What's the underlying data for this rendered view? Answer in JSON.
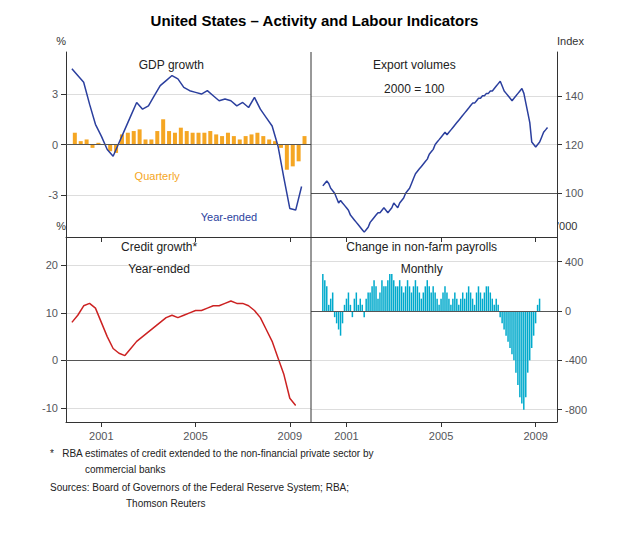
{
  "title": "United States – Activity and Labour Indicators",
  "annotations": [
    "*   RBA estimates of credit extended to the non-financial private sector by",
    "commercial banks",
    "Sources: Board of Governors of the Federal Reserve System; RBA;",
    "Thomson Reuters"
  ],
  "chart_data": [
    {
      "type": "bar",
      "title": "GDP growth",
      "ylabel": "%",
      "xlim": [
        1999.5,
        2009.9
      ],
      "xticks": [
        2001,
        2005,
        2009
      ],
      "ylim": [
        -5.5,
        5.5
      ],
      "yticks": [
        -3,
        0,
        3
      ],
      "grid": true,
      "tick_labels": "y",
      "hline": 0,
      "series": [
        {
          "name": "Quarterly",
          "type": "bar",
          "color": "#f5a623",
          "x": [
            1999.875,
            2000.125,
            2000.375,
            2000.625,
            2000.875,
            2001.125,
            2001.375,
            2001.625,
            2001.875,
            2002.125,
            2002.375,
            2002.625,
            2002.875,
            2003.125,
            2003.375,
            2003.625,
            2003.875,
            2004.125,
            2004.375,
            2004.625,
            2004.875,
            2005.125,
            2005.375,
            2005.625,
            2005.875,
            2006.125,
            2006.375,
            2006.625,
            2006.875,
            2007.125,
            2007.375,
            2007.625,
            2007.875,
            2008.125,
            2008.375,
            2008.625,
            2008.875,
            2009.125,
            2009.375,
            2009.625
          ],
          "values": [
            0.7,
            0.2,
            0.3,
            -0.2,
            0.1,
            0.0,
            -0.4,
            -0.5,
            0.6,
            0.7,
            0.8,
            0.9,
            0.3,
            0.3,
            0.8,
            1.5,
            0.8,
            0.7,
            1.0,
            0.8,
            0.7,
            0.7,
            0.7,
            0.8,
            0.6,
            0.5,
            0.7,
            0.5,
            0.3,
            0.5,
            0.6,
            0.7,
            0.5,
            0.3,
            0.2,
            -0.2,
            -1.5,
            -1.3,
            -1.0,
            0.5
          ]
        },
        {
          "name": "Year-ended",
          "type": "line",
          "color": "#2b3f9e",
          "x": [
            1999.75,
            2000.0,
            2000.25,
            2000.5,
            2000.75,
            2001.0,
            2001.25,
            2001.5,
            2001.75,
            2002.0,
            2002.25,
            2002.5,
            2002.75,
            2003.0,
            2003.25,
            2003.5,
            2003.75,
            2004.0,
            2004.25,
            2004.5,
            2004.75,
            2005.0,
            2005.25,
            2005.5,
            2005.75,
            2006.0,
            2006.25,
            2006.5,
            2006.75,
            2007.0,
            2007.25,
            2007.5,
            2007.75,
            2008.0,
            2008.25,
            2008.5,
            2008.75,
            2009.0,
            2009.25,
            2009.5
          ],
          "values": [
            4.5,
            4.1,
            3.7,
            2.4,
            1.2,
            0.5,
            -0.3,
            -0.7,
            0.1,
            0.9,
            1.7,
            2.5,
            2.1,
            2.3,
            2.9,
            3.5,
            3.8,
            4.1,
            3.9,
            3.4,
            3.2,
            3.1,
            3.0,
            3.2,
            2.9,
            2.6,
            2.7,
            2.6,
            2.3,
            2.5,
            2.2,
            2.8,
            2.1,
            1.6,
            1.1,
            -0.1,
            -2.0,
            -3.8,
            -3.9,
            -2.5
          ]
        }
      ]
    },
    {
      "type": "line",
      "title": "Export volumes",
      "subtitle": "2000 = 100",
      "ylabel": "Index",
      "xlim": [
        1999.5,
        2009.9
      ],
      "xticks": [
        2001,
        2005,
        2009
      ],
      "ylim": [
        82,
        158
      ],
      "yticks": [
        100,
        120,
        140
      ],
      "grid": true,
      "tick_labels": "y",
      "hline": 100,
      "color": "#2b3f9e",
      "x": [
        2000.0,
        2000.083,
        2000.167,
        2000.25,
        2000.333,
        2000.417,
        2000.5,
        2000.583,
        2000.667,
        2000.75,
        2000.833,
        2000.917,
        2001.0,
        2001.083,
        2001.167,
        2001.25,
        2001.333,
        2001.417,
        2001.5,
        2001.583,
        2001.667,
        2001.75,
        2001.833,
        2001.917,
        2002.0,
        2002.083,
        2002.167,
        2002.25,
        2002.333,
        2002.417,
        2002.5,
        2002.583,
        2002.667,
        2002.75,
        2002.833,
        2002.917,
        2003.0,
        2003.083,
        2003.167,
        2003.25,
        2003.333,
        2003.417,
        2003.5,
        2003.583,
        2003.667,
        2003.75,
        2003.833,
        2003.917,
        2004.0,
        2004.083,
        2004.167,
        2004.25,
        2004.333,
        2004.417,
        2004.5,
        2004.583,
        2004.667,
        2004.75,
        2004.833,
        2004.917,
        2005.0,
        2005.083,
        2005.167,
        2005.25,
        2005.333,
        2005.417,
        2005.5,
        2005.583,
        2005.667,
        2005.75,
        2005.833,
        2005.917,
        2006.0,
        2006.083,
        2006.167,
        2006.25,
        2006.333,
        2006.417,
        2006.5,
        2006.583,
        2006.667,
        2006.75,
        2006.833,
        2006.917,
        2007.0,
        2007.083,
        2007.167,
        2007.25,
        2007.333,
        2007.417,
        2007.5,
        2007.583,
        2007.667,
        2007.75,
        2007.833,
        2007.917,
        2008.0,
        2008.083,
        2008.167,
        2008.25,
        2008.333,
        2008.417,
        2008.5,
        2008.583,
        2008.667,
        2008.75,
        2008.833,
        2008.917,
        2009.0,
        2009.083,
        2009.167,
        2009.25,
        2009.333,
        2009.417,
        2009.5
      ],
      "values": [
        103,
        104,
        105,
        104,
        102,
        101,
        100,
        98,
        96,
        97,
        96,
        95,
        94,
        93,
        91,
        90,
        89,
        88,
        87,
        86,
        85,
        84,
        85,
        86,
        88,
        89,
        90,
        91,
        92,
        92,
        93,
        94,
        93,
        92,
        93,
        94,
        96,
        95,
        94,
        96,
        97,
        98,
        100,
        101,
        102,
        104,
        106,
        108,
        109,
        110,
        111,
        112,
        113,
        114,
        116,
        117,
        118,
        120,
        121,
        122,
        123,
        124,
        125,
        124,
        125,
        126,
        127,
        128,
        129,
        130,
        131,
        132,
        133,
        134,
        135,
        136,
        137,
        137,
        138,
        139,
        139,
        140,
        140,
        141,
        141,
        142,
        142,
        143,
        144,
        145,
        146,
        144,
        142,
        141,
        140,
        139,
        138,
        139,
        140,
        141,
        142,
        143,
        141,
        137,
        133,
        129,
        121,
        120,
        119,
        120,
        121,
        123,
        125,
        126,
        127
      ]
    },
    {
      "type": "line",
      "title": "Credit growth*",
      "subtitle": "Year-ended",
      "ylabel": "%",
      "xlim": [
        1999.5,
        2009.9
      ],
      "xticks": [
        2001,
        2005,
        2009
      ],
      "ylim": [
        -13,
        26
      ],
      "yticks": [
        -10,
        0,
        10,
        20
      ],
      "grid": true,
      "hline": 0,
      "color": "#cc2222",
      "x": [
        1999.75,
        2000.0,
        2000.25,
        2000.5,
        2000.75,
        2001.0,
        2001.25,
        2001.5,
        2001.75,
        2002.0,
        2002.25,
        2002.5,
        2002.75,
        2003.0,
        2003.25,
        2003.5,
        2003.75,
        2004.0,
        2004.25,
        2004.5,
        2004.75,
        2005.0,
        2005.25,
        2005.5,
        2005.75,
        2006.0,
        2006.25,
        2006.5,
        2006.75,
        2007.0,
        2007.25,
        2007.5,
        2007.75,
        2008.0,
        2008.25,
        2008.5,
        2008.75,
        2009.0,
        2009.25
      ],
      "values": [
        8.0,
        9.5,
        11.5,
        12.0,
        11.0,
        8.0,
        5.0,
        2.5,
        1.5,
        1.0,
        2.5,
        4.0,
        5.0,
        6.0,
        7.0,
        8.0,
        9.0,
        9.5,
        9.0,
        9.5,
        10.0,
        10.5,
        10.5,
        11.0,
        11.5,
        11.5,
        12.0,
        12.5,
        12.0,
        12.0,
        11.5,
        10.5,
        9.0,
        6.5,
        4.0,
        0.5,
        -3.0,
        -8.0,
        -9.5
      ]
    },
    {
      "type": "bar",
      "title": "Change in non-farm payrolls",
      "subtitle": "Monthly",
      "ylabel": "'000",
      "xlim": [
        1999.5,
        2009.9
      ],
      "xticks": [
        2001,
        2005,
        2009
      ],
      "ylim": [
        -900,
        600
      ],
      "yticks": [
        -800,
        -400,
        0,
        400
      ],
      "grid": true,
      "hline": 0,
      "color": "#00aacc",
      "x": [
        2000,
        2000.0833,
        2000.1666,
        2000.2499,
        2000.3332,
        2000.4165,
        2000.4998,
        2000.5831,
        2000.6664,
        2000.7497,
        2000.833,
        2000.9163,
        2000.9996,
        2001.0829,
        2001.1662,
        2001.2495,
        2001.3328,
        2001.4161,
        2001.4994,
        2001.5827,
        2001.666,
        2001.7493,
        2001.8326,
        2001.9159,
        2001.9992,
        2002.0825,
        2002.1658,
        2002.2491,
        2002.3324,
        2002.4157,
        2002.499,
        2002.5823,
        2002.6656,
        2002.7489,
        2002.8322,
        2002.9155,
        2002.9988,
        2003.0821,
        2003.1654,
        2003.2487,
        2003.332,
        2003.4153,
        2003.4986,
        2003.5819,
        2003.6652,
        2003.7485,
        2003.8318,
        2003.9151,
        2003.9984,
        2004.0817,
        2004.165,
        2004.2483,
        2004.3316,
        2004.4149,
        2004.4982,
        2004.5815,
        2004.6648,
        2004.7481,
        2004.8314,
        2004.9147,
        2004.998,
        2005.0813,
        2005.1646,
        2005.2479,
        2005.3312,
        2005.4145,
        2005.4978,
        2005.5811,
        2005.6644,
        2005.7477,
        2005.831,
        2005.9143,
        2005.9976,
        2006.0809,
        2006.1642,
        2006.2475,
        2006.3308,
        2006.4141,
        2006.4974,
        2006.5807,
        2006.664,
        2006.7473,
        2006.8306,
        2006.9139,
        2006.9972,
        2007.0805,
        2007.1638,
        2007.2471,
        2007.3304,
        2007.4137,
        2007.497,
        2007.5803,
        2007.6636,
        2007.7469,
        2007.8302,
        2007.9135,
        2007.9968,
        2008.0801,
        2008.1634,
        2008.2467,
        2008.33,
        2008.4133,
        2008.4966,
        2008.5799,
        2008.6632,
        2008.7465,
        2008.8298,
        2008.9131,
        2008.9964,
        2009.0797,
        2009.163
      ],
      "values": [
        300,
        250,
        200,
        50,
        100,
        150,
        -50,
        -100,
        -150,
        -200,
        -100,
        50,
        100,
        150,
        50,
        -50,
        100,
        150,
        50,
        100,
        50,
        -50,
        100,
        150,
        150,
        200,
        250,
        200,
        100,
        150,
        250,
        200,
        200,
        250,
        300,
        300,
        250,
        200,
        200,
        250,
        200,
        150,
        200,
        250,
        200,
        150,
        200,
        250,
        200,
        150,
        100,
        150,
        200,
        250,
        200,
        150,
        200,
        150,
        100,
        50,
        100,
        150,
        200,
        150,
        100,
        50,
        100,
        150,
        100,
        50,
        100,
        150,
        100,
        150,
        200,
        150,
        100,
        50,
        150,
        200,
        150,
        100,
        150,
        200,
        200,
        150,
        100,
        50,
        100,
        50,
        -50,
        -100,
        -150,
        -200,
        -250,
        -300,
        -350,
        -400,
        -500,
        -600,
        -700,
        -750,
        -800,
        -700,
        -500,
        -400,
        -300,
        -200,
        -100,
        50,
        100
      ]
    }
  ]
}
